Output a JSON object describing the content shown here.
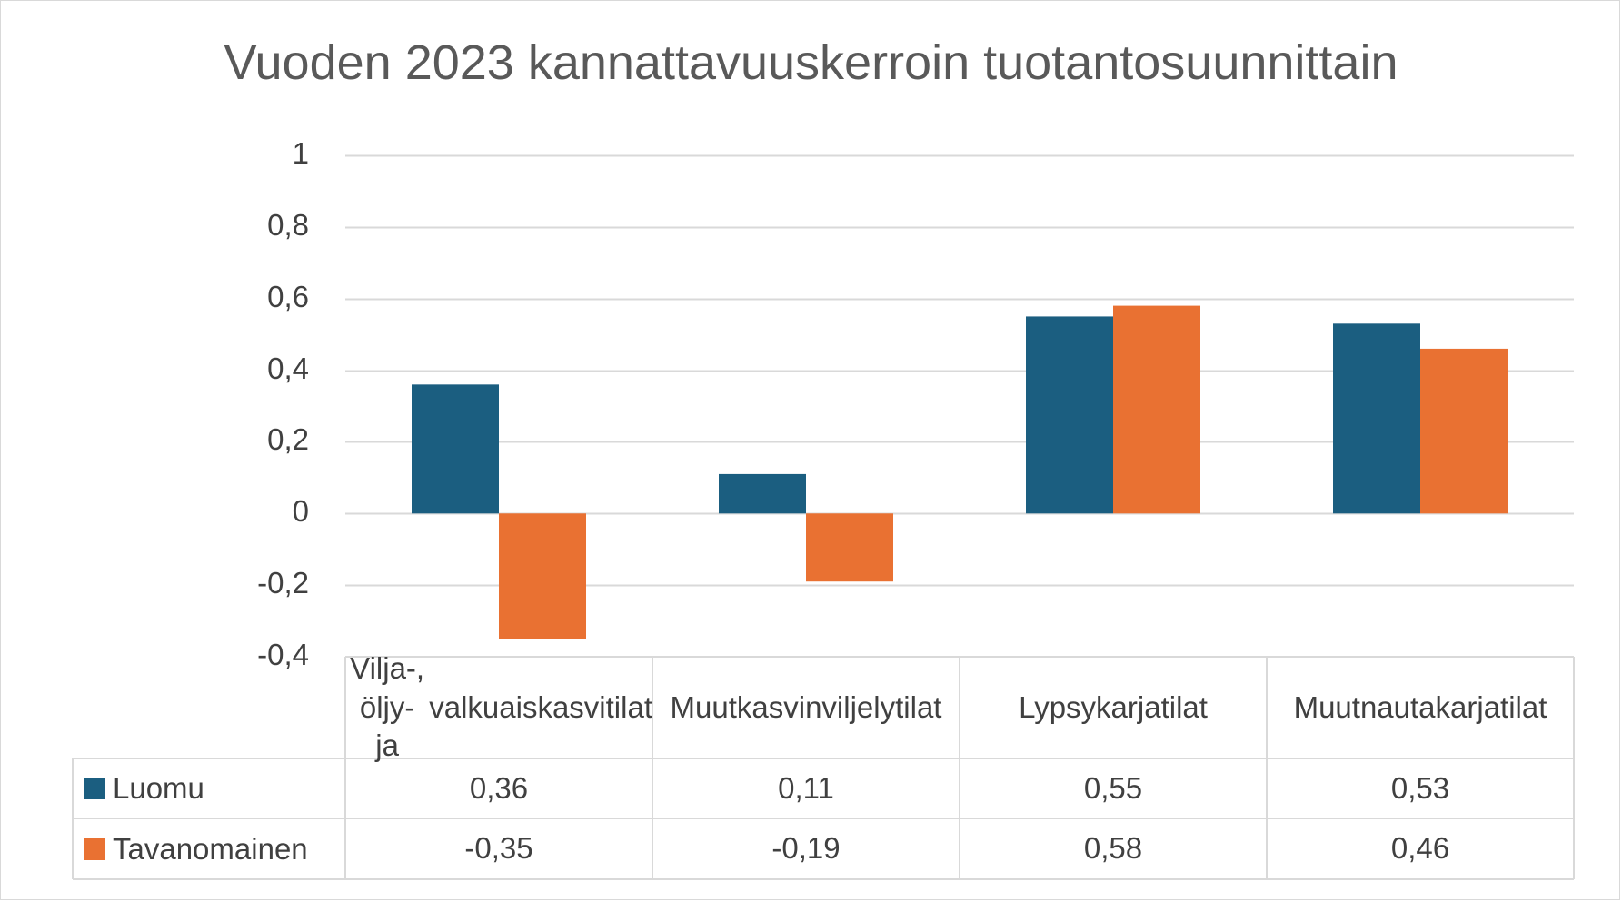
{
  "chart_data": {
    "type": "bar",
    "title": "Vuoden 2023 kannattavuuskerroin tuotantosuunnittain",
    "categories": [
      [
        "Vilja-, öljy- ja",
        "valkuaiskasvitilat"
      ],
      [
        "Muut",
        "kasvinviljelytilat"
      ],
      [
        "Lypsykarjatilat"
      ],
      [
        "Muut",
        "nautakarjatilat"
      ]
    ],
    "series": [
      {
        "name": "Luomu",
        "color": "#1b5e80",
        "values": [
          0.36,
          0.11,
          0.55,
          0.53
        ],
        "labels": [
          "0,36",
          "0,11",
          "0,55",
          "0,53"
        ]
      },
      {
        "name": "Tavanomainen",
        "color": "#e97132",
        "values": [
          -0.35,
          -0.19,
          0.58,
          0.46
        ],
        "labels": [
          "-0,35",
          "-0,19",
          "0,58",
          "0,46"
        ]
      }
    ],
    "ylim": [
      -0.4,
      1
    ],
    "yticks": [
      1,
      0.8,
      0.6,
      0.4,
      0.2,
      0,
      -0.2,
      -0.4
    ],
    "ytick_labels": [
      "1",
      "0,8",
      "0,6",
      "0,4",
      "0,2",
      "0",
      "-0,2",
      "-0,4"
    ],
    "xlabel": "",
    "ylabel": "",
    "data_table": true,
    "grid": true
  }
}
